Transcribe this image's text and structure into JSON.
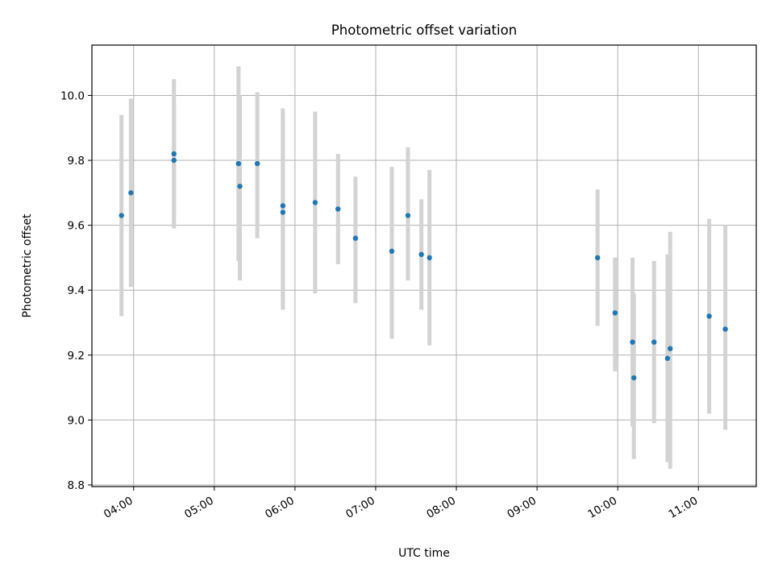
{
  "chart_data": {
    "type": "scatter",
    "title": "Photometric offset variation",
    "xlabel": "UTC time",
    "ylabel": "Photometric offset",
    "xlim": [
      "03:29",
      "11:43"
    ],
    "ylim": [
      8.795,
      10.155
    ],
    "grid": true,
    "x_ticks": [
      "04:00",
      "05:00",
      "06:00",
      "07:00",
      "08:00",
      "09:00",
      "10:00",
      "11:00"
    ],
    "y_ticks": [
      "8.8",
      "9.0",
      "9.2",
      "9.4",
      "9.6",
      "9.8",
      "10.0"
    ],
    "colors": {
      "point": "#1f77b4",
      "errorbar": "#d3d3d3",
      "grid": "#b0b0b0"
    },
    "series": [
      {
        "points": [
          {
            "x": "03:51",
            "y": 9.63,
            "ylow": 9.32,
            "yhigh": 9.94
          },
          {
            "x": "03:58",
            "y": 9.7,
            "ylow": 9.41,
            "yhigh": 9.99
          },
          {
            "x": "04:30",
            "y": 9.82,
            "ylow": 9.61,
            "yhigh": 10.05
          },
          {
            "x": "04:30",
            "y": 9.8,
            "ylow": 9.59,
            "yhigh": 9.98
          },
          {
            "x": "05:18",
            "y": 9.79,
            "ylow": 9.49,
            "yhigh": 10.09
          },
          {
            "x": "05:19",
            "y": 9.72,
            "ylow": 9.43,
            "yhigh": 10.0
          },
          {
            "x": "05:32",
            "y": 9.79,
            "ylow": 9.56,
            "yhigh": 10.01
          },
          {
            "x": "05:51",
            "y": 9.66,
            "ylow": 9.36,
            "yhigh": 9.96
          },
          {
            "x": "05:51",
            "y": 9.64,
            "ylow": 9.34,
            "yhigh": 9.93
          },
          {
            "x": "06:15",
            "y": 9.67,
            "ylow": 9.39,
            "yhigh": 9.95
          },
          {
            "x": "06:32",
            "y": 9.65,
            "ylow": 9.48,
            "yhigh": 9.82
          },
          {
            "x": "06:45",
            "y": 9.56,
            "ylow": 9.36,
            "yhigh": 9.75
          },
          {
            "x": "07:12",
            "y": 9.52,
            "ylow": 9.25,
            "yhigh": 9.78
          },
          {
            "x": "07:24",
            "y": 9.63,
            "ylow": 9.43,
            "yhigh": 9.84
          },
          {
            "x": "07:34",
            "y": 9.51,
            "ylow": 9.34,
            "yhigh": 9.68
          },
          {
            "x": "07:40",
            "y": 9.5,
            "ylow": 9.23,
            "yhigh": 9.77
          },
          {
            "x": "09:45",
            "y": 9.5,
            "ylow": 9.29,
            "yhigh": 9.71
          },
          {
            "x": "09:58",
            "y": 9.33,
            "ylow": 9.15,
            "yhigh": 9.5
          },
          {
            "x": "10:11",
            "y": 9.24,
            "ylow": 8.98,
            "yhigh": 9.5
          },
          {
            "x": "10:12",
            "y": 9.13,
            "ylow": 8.88,
            "yhigh": 9.39
          },
          {
            "x": "10:27",
            "y": 9.24,
            "ylow": 8.99,
            "yhigh": 9.49
          },
          {
            "x": "10:37",
            "y": 9.19,
            "ylow": 8.87,
            "yhigh": 9.51
          },
          {
            "x": "10:39",
            "y": 9.22,
            "ylow": 8.85,
            "yhigh": 9.58
          },
          {
            "x": "11:08",
            "y": 9.32,
            "ylow": 9.02,
            "yhigh": 9.62
          },
          {
            "x": "11:20",
            "y": 9.28,
            "ylow": 8.97,
            "yhigh": 9.6
          }
        ]
      }
    ]
  }
}
